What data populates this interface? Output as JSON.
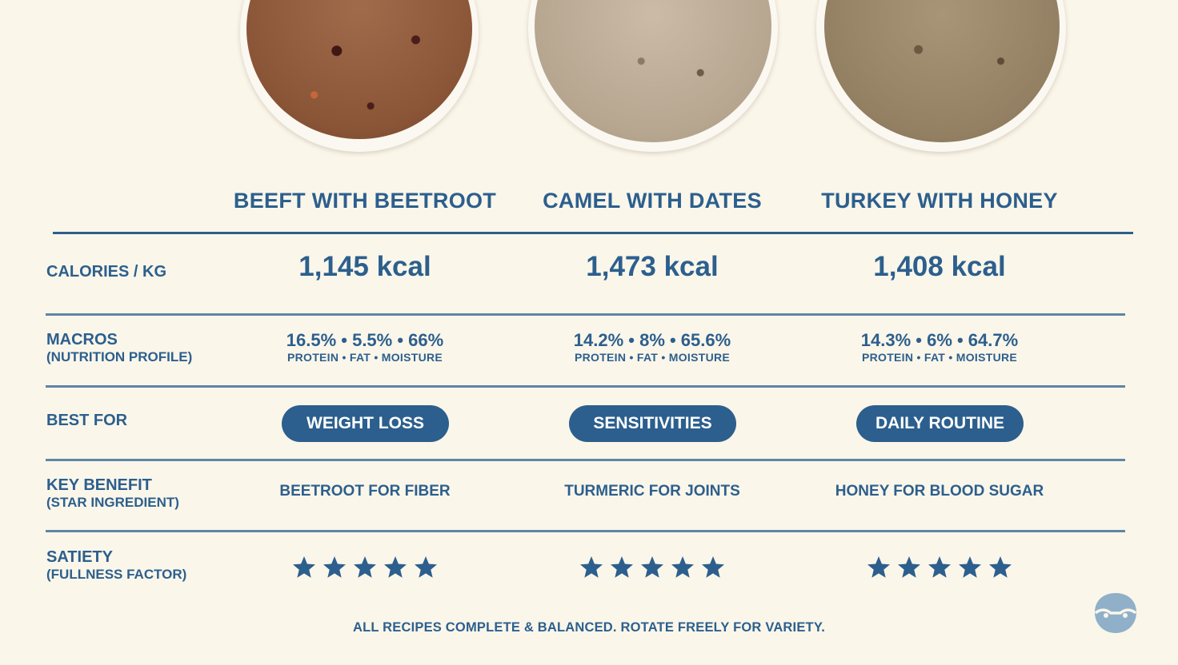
{
  "recipes": [
    {
      "name": "BEEFT WITH BEETROOT",
      "calories": "1,145 kcal",
      "macros_values": "16.5% • 5.5% • 66%",
      "macros_labels": "PROTEIN • FAT • MOISTURE",
      "best_for": "WEIGHT LOSS",
      "key_benefit": "BEETROOT FOR FIBER",
      "satiety_stars": 5
    },
    {
      "name": "CAMEL WITH DATES",
      "calories": "1,473 kcal",
      "macros_values": "14.2% • 8% • 65.6%",
      "macros_labels": "PROTEIN • FAT • MOISTURE",
      "best_for": "SENSITIVITIES",
      "key_benefit": "TURMERIC FOR JOINTS",
      "satiety_stars": 5
    },
    {
      "name": "TURKEY WITH HONEY",
      "calories": "1,408 kcal",
      "macros_values": "14.3% • 6% • 64.7%",
      "macros_labels": "PROTEIN • FAT • MOISTURE",
      "best_for": "DAILY ROUTINE",
      "key_benefit": "HONEY FOR BLOOD SUGAR",
      "satiety_stars": 5
    }
  ],
  "rows": {
    "calories": {
      "label": "CALORIES / KG"
    },
    "macros": {
      "label": "MACROS",
      "sub": "(NUTRITION PROFILE)"
    },
    "best_for": {
      "label": "BEST FOR"
    },
    "key_benefit": {
      "label": "KEY BENEFIT",
      "sub": "(STAR INGREDIENT)"
    },
    "satiety": {
      "label": "SATIETY",
      "sub": "(FULLNESS FACTOR)"
    }
  },
  "footer": "ALL RECIPES COMPLETE & BALANCED. ROTATE FREELY FOR VARIETY.",
  "colors": {
    "accent": "#2c5f8d",
    "background": "#faf6ea",
    "logo": "#8fb0c8"
  },
  "icons": {
    "star": "star-icon",
    "logo": "brand-logo-icon"
  }
}
